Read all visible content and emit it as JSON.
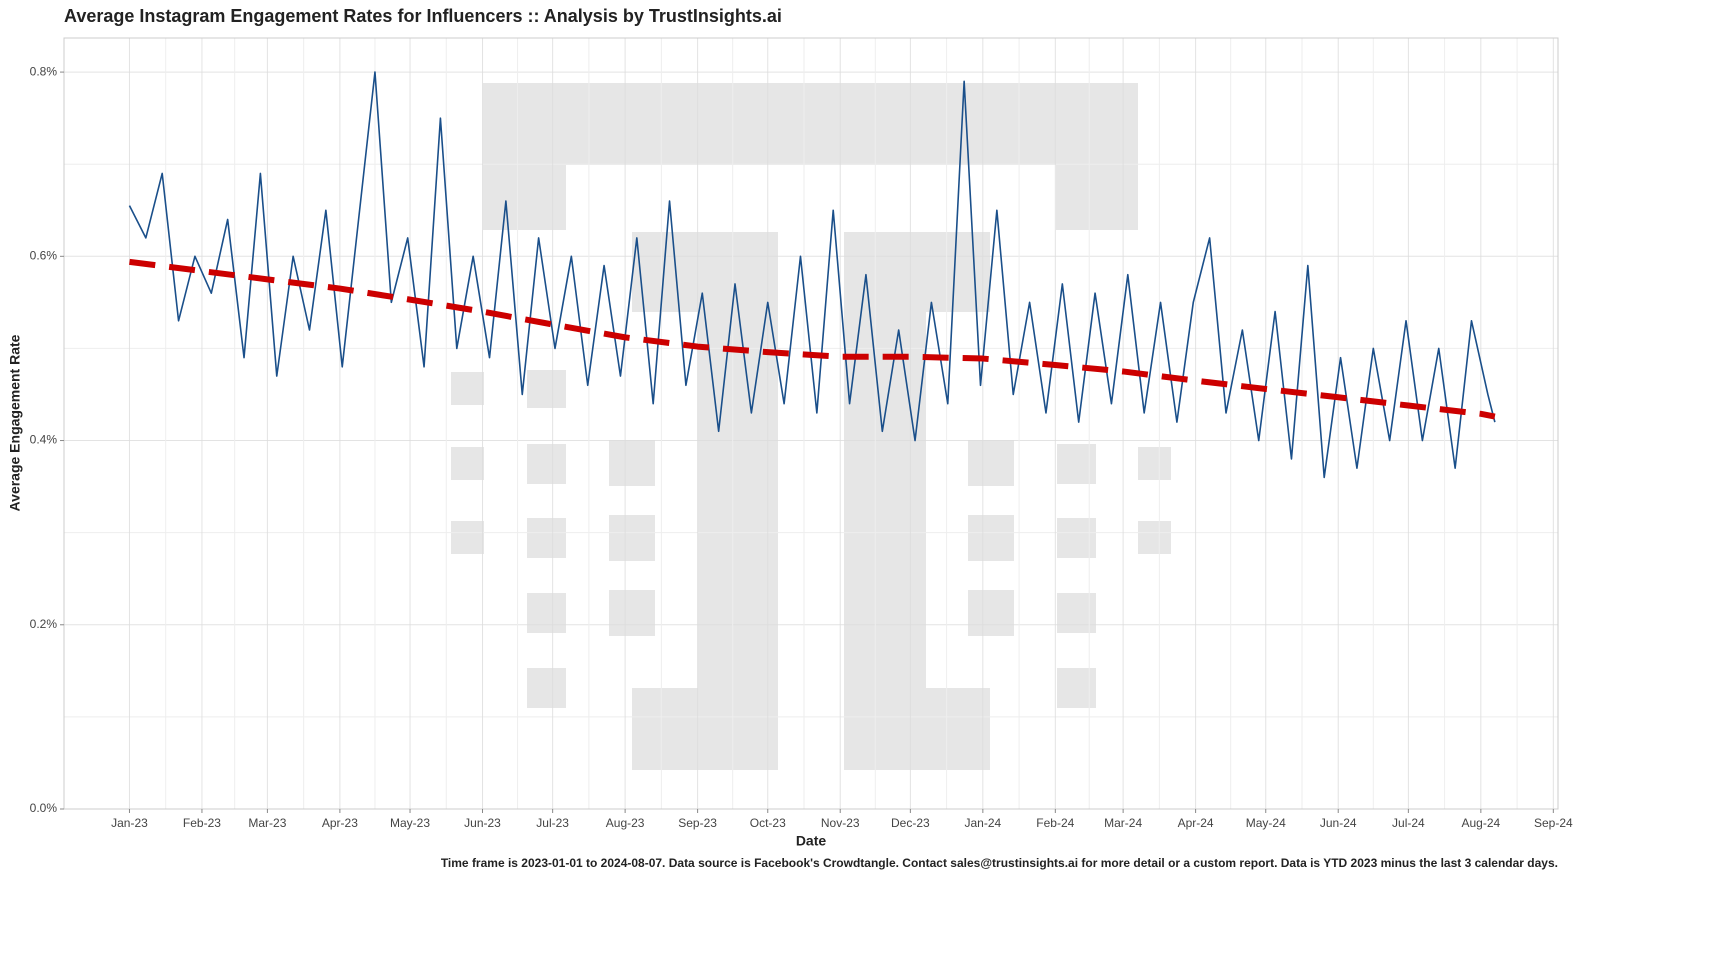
{
  "chart_data": {
    "type": "line",
    "title": "Average Instagram Engagement Rates for Influencers :: Analysis by TrustInsights.ai",
    "x_label": "Date",
    "y_label": "Average Engagement Rate",
    "caption": "Time frame is 2023-01-01 to 2024-08-07. Data source is Facebook's Crowdtangle. Contact sales@trustinsights.ai for more detail or a custom report. Data is YTD 2023 minus the last 3 calendar days.",
    "grid": true,
    "xlim": [
      "2022-12-04",
      "2024-09-03"
    ],
    "ylim": [
      0,
      0.837
    ],
    "yticks": [
      {
        "value": 0,
        "label": "0.0%"
      },
      {
        "value": 0.2,
        "label": "0.2%"
      },
      {
        "value": 0.4,
        "label": "0.4%"
      },
      {
        "value": 0.6,
        "label": "0.6%"
      },
      {
        "value": 0.8,
        "label": "0.8%"
      }
    ],
    "xticks": [
      {
        "value": "2023-01-01",
        "label": "Jan-23"
      },
      {
        "value": "2023-02-01",
        "label": "Feb-23"
      },
      {
        "value": "2023-03-01",
        "label": "Mar-23"
      },
      {
        "value": "2023-04-01",
        "label": "Apr-23"
      },
      {
        "value": "2023-05-01",
        "label": "May-23"
      },
      {
        "value": "2023-06-01",
        "label": "Jun-23"
      },
      {
        "value": "2023-07-01",
        "label": "Jul-23"
      },
      {
        "value": "2023-08-01",
        "label": "Aug-23"
      },
      {
        "value": "2023-09-01",
        "label": "Sep-23"
      },
      {
        "value": "2023-10-01",
        "label": "Oct-23"
      },
      {
        "value": "2023-11-01",
        "label": "Nov-23"
      },
      {
        "value": "2023-12-01",
        "label": "Dec-23"
      },
      {
        "value": "2024-01-01",
        "label": "Jan-24"
      },
      {
        "value": "2024-02-01",
        "label": "Feb-24"
      },
      {
        "value": "2024-03-01",
        "label": "Mar-24"
      },
      {
        "value": "2024-04-01",
        "label": "Apr-24"
      },
      {
        "value": "2024-05-01",
        "label": "May-24"
      },
      {
        "value": "2024-06-01",
        "label": "Jun-24"
      },
      {
        "value": "2024-07-01",
        "label": "Jul-24"
      },
      {
        "value": "2024-08-01",
        "label": "Aug-24"
      },
      {
        "value": "2024-09-01",
        "label": "Sep-24"
      }
    ],
    "series": [
      {
        "color": "#1a4f8a",
        "width": 1.6,
        "x": [
          "2023-01-01",
          "2023-01-08",
          "2023-01-15",
          "2023-01-22",
          "2023-01-29",
          "2023-02-05",
          "2023-02-12",
          "2023-02-19",
          "2023-02-26",
          "2023-03-05",
          "2023-03-12",
          "2023-03-19",
          "2023-03-26",
          "2023-04-02",
          "2023-04-09",
          "2023-04-16",
          "2023-04-23",
          "2023-04-30",
          "2023-05-07",
          "2023-05-14",
          "2023-05-21",
          "2023-05-28",
          "2023-06-04",
          "2023-06-11",
          "2023-06-18",
          "2023-06-25",
          "2023-07-02",
          "2023-07-09",
          "2023-07-16",
          "2023-07-23",
          "2023-07-30",
          "2023-08-06",
          "2023-08-13",
          "2023-08-20",
          "2023-08-27",
          "2023-09-03",
          "2023-09-10",
          "2023-09-17",
          "2023-09-24",
          "2023-10-01",
          "2023-10-08",
          "2023-10-15",
          "2023-10-22",
          "2023-10-29",
          "2023-11-05",
          "2023-11-12",
          "2023-11-19",
          "2023-11-26",
          "2023-12-03",
          "2023-12-10",
          "2023-12-17",
          "2023-12-24",
          "2023-12-31",
          "2024-01-07",
          "2024-01-14",
          "2024-01-21",
          "2024-01-28",
          "2024-02-04",
          "2024-02-11",
          "2024-02-18",
          "2024-02-25",
          "2024-03-03",
          "2024-03-10",
          "2024-03-17",
          "2024-03-24",
          "2024-03-31",
          "2024-04-07",
          "2024-04-14",
          "2024-04-21",
          "2024-04-28",
          "2024-05-05",
          "2024-05-12",
          "2024-05-19",
          "2024-05-26",
          "2024-06-02",
          "2024-06-09",
          "2024-06-16",
          "2024-06-23",
          "2024-06-30",
          "2024-07-07",
          "2024-07-14",
          "2024-07-21",
          "2024-07-28",
          "2024-08-04",
          "2024-08-07"
        ],
        "values": [
          0.655,
          0.62,
          0.69,
          0.53,
          0.6,
          0.56,
          0.64,
          0.49,
          0.69,
          0.47,
          0.6,
          0.52,
          0.65,
          0.48,
          0.64,
          0.8,
          0.55,
          0.62,
          0.48,
          0.75,
          0.5,
          0.6,
          0.49,
          0.66,
          0.45,
          0.62,
          0.5,
          0.6,
          0.46,
          0.59,
          0.47,
          0.62,
          0.44,
          0.66,
          0.46,
          0.56,
          0.41,
          0.57,
          0.43,
          0.55,
          0.44,
          0.6,
          0.43,
          0.65,
          0.44,
          0.58,
          0.41,
          0.52,
          0.4,
          0.55,
          0.44,
          0.79,
          0.46,
          0.65,
          0.45,
          0.55,
          0.43,
          0.57,
          0.42,
          0.56,
          0.44,
          0.58,
          0.43,
          0.55,
          0.42,
          0.55,
          0.62,
          0.43,
          0.52,
          0.4,
          0.54,
          0.38,
          0.59,
          0.36,
          0.49,
          0.37,
          0.5,
          0.4,
          0.53,
          0.4,
          0.5,
          0.37,
          0.53,
          0.45,
          0.42
        ]
      },
      {
        "color": "#cc0000",
        "width": 6,
        "dashed": true,
        "x": [
          "2023-01-01",
          "2023-02-01",
          "2023-03-01",
          "2023-04-01",
          "2023-05-01",
          "2023-06-01",
          "2023-07-01",
          "2023-08-01",
          "2023-09-01",
          "2023-10-01",
          "2023-11-01",
          "2023-12-01",
          "2024-01-01",
          "2024-02-01",
          "2024-03-01",
          "2024-04-01",
          "2024-05-01",
          "2024-06-01",
          "2024-07-01",
          "2024-08-01",
          "2024-08-07"
        ],
        "values": [
          0.594,
          0.584,
          0.575,
          0.565,
          0.553,
          0.54,
          0.526,
          0.512,
          0.502,
          0.496,
          0.491,
          0.491,
          0.489,
          0.482,
          0.475,
          0.465,
          0.456,
          0.447,
          0.438,
          0.429,
          0.426
        ]
      }
    ]
  }
}
